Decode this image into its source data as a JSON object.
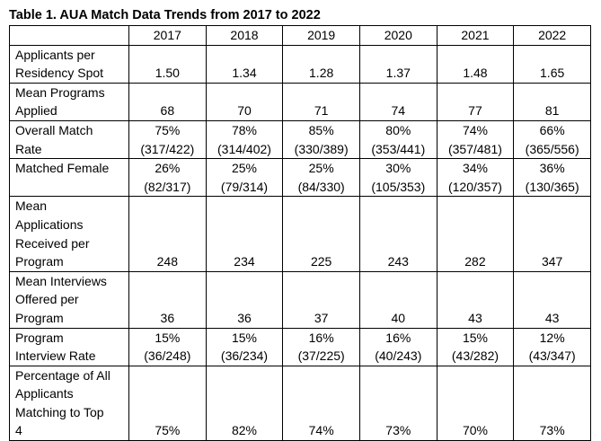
{
  "title": "Table 1. AUA Match Data Trends from 2017 to 2022",
  "table": {
    "columns": [
      "2017",
      "2018",
      "2019",
      "2020",
      "2021",
      "2022"
    ],
    "rows": [
      {
        "label": [
          "Applicants per",
          "Residency Spot"
        ],
        "cells": [
          [
            "1.50"
          ],
          [
            "1.34"
          ],
          [
            "1.28"
          ],
          [
            "1.37"
          ],
          [
            "1.48"
          ],
          [
            "1.65"
          ]
        ]
      },
      {
        "label": [
          "Mean Programs",
          "Applied"
        ],
        "cells": [
          [
            "68"
          ],
          [
            "70"
          ],
          [
            "71"
          ],
          [
            "74"
          ],
          [
            "77"
          ],
          [
            "81"
          ]
        ]
      },
      {
        "label": [
          "Overall Match",
          "Rate"
        ],
        "cells": [
          [
            "75%",
            "(317/422)"
          ],
          [
            "78%",
            "(314/402)"
          ],
          [
            "85%",
            "(330/389)"
          ],
          [
            "80%",
            "(353/441)"
          ],
          [
            "74%",
            "(357/481)"
          ],
          [
            "66%",
            "(365/556)"
          ]
        ]
      },
      {
        "label": [
          "Matched Female"
        ],
        "cells": [
          [
            "26%",
            "(82/317)"
          ],
          [
            "25%",
            "(79/314)"
          ],
          [
            "25%",
            "(84/330)"
          ],
          [
            "30%",
            "(105/353)"
          ],
          [
            "34%",
            "(120/357)"
          ],
          [
            "36%",
            "(130/365)"
          ]
        ]
      },
      {
        "label": [
          "Mean",
          "Applications",
          "Received per",
          "Program"
        ],
        "cells": [
          [
            "248"
          ],
          [
            "234"
          ],
          [
            "225"
          ],
          [
            "243"
          ],
          [
            "282"
          ],
          [
            "347"
          ]
        ]
      },
      {
        "label": [
          "Mean Interviews",
          "Offered per",
          "Program"
        ],
        "cells": [
          [
            "36"
          ],
          [
            "36"
          ],
          [
            "37"
          ],
          [
            "40"
          ],
          [
            "43"
          ],
          [
            "43"
          ]
        ]
      },
      {
        "label": [
          "Program",
          "Interview Rate"
        ],
        "cells": [
          [
            "15%",
            "(36/248)"
          ],
          [
            "15%",
            "(36/234)"
          ],
          [
            "16%",
            "(37/225)"
          ],
          [
            "16%",
            "(40/243)"
          ],
          [
            "15%",
            "(43/282)"
          ],
          [
            "12%",
            "(43/347)"
          ]
        ]
      },
      {
        "label": [
          "Percentage of All",
          "Applicants",
          "Matching to Top",
          "4"
        ],
        "cells": [
          [
            "75%"
          ],
          [
            "82%"
          ],
          [
            "74%"
          ],
          [
            "73%"
          ],
          [
            "70%"
          ],
          [
            "73%"
          ]
        ]
      }
    ]
  }
}
